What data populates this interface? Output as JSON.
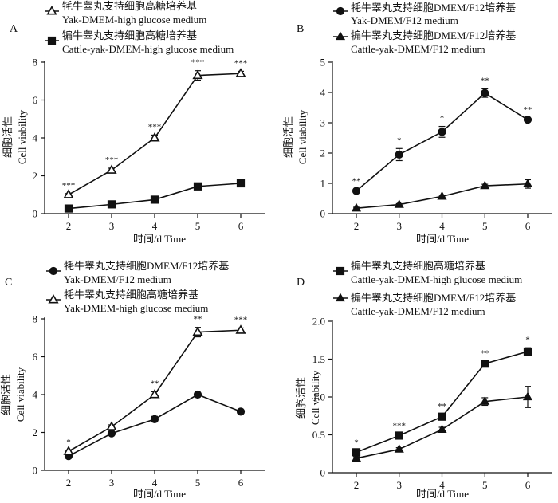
{
  "chart_data": [
    {
      "type": "line",
      "panel": "A",
      "xlabel": "时间/d Time",
      "ylabel_cn": "细胞活性",
      "ylabel_en": "Cell viability",
      "x": [
        2,
        3,
        4,
        5,
        6
      ],
      "ylim": [
        0,
        8
      ],
      "yticks": [
        0,
        2,
        4,
        6,
        8
      ],
      "ytick_labels": [
        "0",
        "2",
        "4",
        "6",
        "8"
      ],
      "legend_position": "top",
      "series": [
        {
          "name_cn": "牦牛睾丸支持细胞高糖培养基",
          "name_en": "Yak-DMEM-high glucose medium",
          "marker": "open-triangle",
          "values": [
            1.0,
            2.3,
            4.0,
            7.3,
            7.4
          ],
          "errors": [
            0.06,
            0.1,
            0.15,
            0.25,
            0.12
          ]
        },
        {
          "name_cn": "犏牛睾丸支持细胞高糖培养基",
          "name_en": "Cattle-yak-DMEM-high glucose medium",
          "marker": "square",
          "values": [
            0.27,
            0.49,
            0.74,
            1.44,
            1.6
          ],
          "errors": [
            0.03,
            0.04,
            0.05,
            0.06,
            0.08
          ]
        }
      ],
      "significance": [
        "***",
        "***",
        "***",
        "***",
        "***"
      ]
    },
    {
      "type": "line",
      "panel": "B",
      "xlabel": "时间/d Time",
      "ylabel_cn": "细胞活性",
      "ylabel_en": "Cell viability",
      "x": [
        2,
        3,
        4,
        5,
        6
      ],
      "ylim": [
        0,
        5
      ],
      "yticks": [
        0,
        1,
        2,
        3,
        4,
        5
      ],
      "ytick_labels": [
        "0",
        "1",
        "2",
        "3",
        "4",
        "5"
      ],
      "legend_position": "top",
      "series": [
        {
          "name_cn": "牦牛睾丸支持细胞DMEM/F12培养基",
          "name_en": "Yak-DMEM/F12 medium",
          "marker": "circle",
          "values": [
            0.75,
            1.95,
            2.7,
            3.98,
            3.1
          ],
          "errors": [
            0.05,
            0.2,
            0.18,
            0.14,
            0.06
          ]
        },
        {
          "name_cn": "犏牛睾丸支持细胞DMEM/F12培养基",
          "name_en": "Cattle-yak-DMEM/F12 medium",
          "marker": "triangle",
          "values": [
            0.18,
            0.3,
            0.57,
            0.92,
            0.98
          ],
          "errors": [
            0.03,
            0.03,
            0.04,
            0.05,
            0.14
          ]
        }
      ],
      "significance": [
        "**",
        "*",
        "*",
        "**",
        "**"
      ]
    },
    {
      "type": "line",
      "panel": "C",
      "xlabel": "时间/d Time",
      "ylabel_cn": "细胞活性",
      "ylabel_en": "Cell viability",
      "x": [
        2,
        3,
        4,
        5,
        6
      ],
      "ylim": [
        0,
        8
      ],
      "yticks": [
        0,
        2,
        4,
        6,
        8
      ],
      "ytick_labels": [
        "0",
        "2",
        "4",
        "6",
        "8"
      ],
      "legend_position": "top",
      "series": [
        {
          "name_cn": "牦牛睾丸支持细胞DMEM/F12培养基",
          "name_en": "Yak-DMEM/F12 medium",
          "marker": "circle",
          "values": [
            0.75,
            1.95,
            2.7,
            4.0,
            3.1
          ],
          "errors": [
            0.05,
            0.08,
            0.15,
            0.12,
            0.06
          ]
        },
        {
          "name_cn": "牦牛睾丸支持细胞高糖培养基",
          "name_en": "Yak-DMEM-high glucose medium",
          "marker": "open-triangle",
          "values": [
            1.0,
            2.3,
            4.0,
            7.3,
            7.4
          ],
          "errors": [
            0.06,
            0.1,
            0.15,
            0.25,
            0.12
          ]
        }
      ],
      "significance": [
        "*",
        "",
        "**",
        "**",
        "***"
      ]
    },
    {
      "type": "line",
      "panel": "D",
      "xlabel": "时间/d Time",
      "ylabel_cn": "细胞活性",
      "ylabel_en": "Cell viability",
      "x": [
        2,
        3,
        4,
        5,
        6
      ],
      "ylim": [
        0,
        2.0
      ],
      "yticks": [
        0,
        0.5,
        1.0,
        1.5,
        2.0
      ],
      "ytick_labels": [
        "0",
        "0.5",
        "1.0",
        "1.5",
        "2.0"
      ],
      "legend_position": "top",
      "series": [
        {
          "name_cn": "犏牛睾丸支持细胞高糖培养基",
          "name_en": "Cattle-yak-DMEM-high glucose medium",
          "marker": "square",
          "values": [
            0.27,
            0.49,
            0.74,
            1.44,
            1.6
          ],
          "errors": [
            0.02,
            0.02,
            0.03,
            0.03,
            0.05
          ]
        },
        {
          "name_cn": "犏牛睾丸支持细胞DMEM/F12培养基",
          "name_en": "Cattle-yak-DMEM/F12 medium",
          "marker": "triangle",
          "values": [
            0.19,
            0.31,
            0.57,
            0.94,
            1.0
          ],
          "errors": [
            0.02,
            0.02,
            0.03,
            0.05,
            0.14
          ]
        }
      ],
      "significance": [
        "*",
        "***",
        "**",
        "**",
        "*"
      ]
    }
  ]
}
